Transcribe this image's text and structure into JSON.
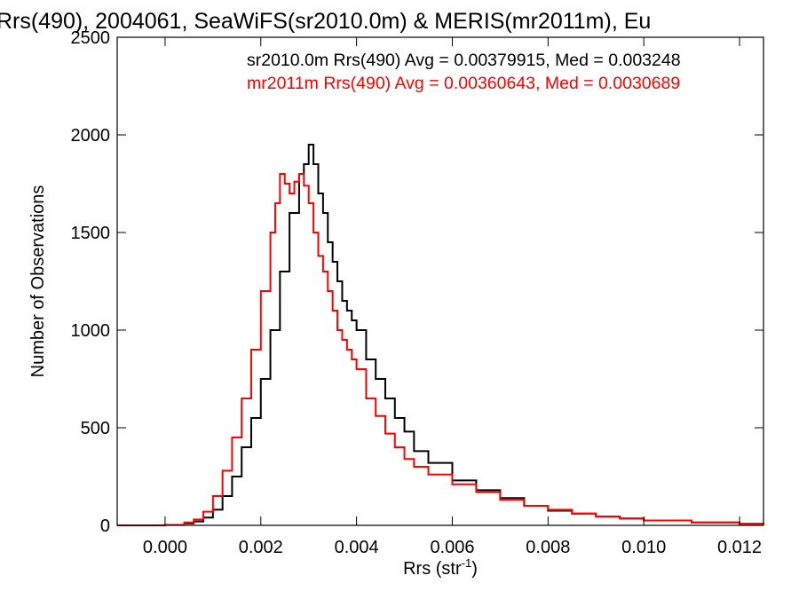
{
  "chart_data": {
    "type": "line",
    "title": "Rrs(490), 2004061, SeaWiFS(sr2010.0m) & MERIS(mr2011m), Eu",
    "xlabel": "Rrs (str",
    "xlabel_sup": "-1",
    "xlabel_close": ")",
    "ylabel": "Number of Observations",
    "xlim": [
      -0.001,
      0.0125
    ],
    "ylim": [
      0,
      2500
    ],
    "x_ticks": [
      0.0,
      0.002,
      0.004,
      0.006,
      0.008,
      0.01,
      0.012
    ],
    "x_tick_labels": [
      "0.000",
      "0.002",
      "0.004",
      "0.006",
      "0.008",
      "0.010",
      "0.012"
    ],
    "y_ticks": [
      0,
      500,
      1000,
      1500,
      2000,
      2500
    ],
    "y_tick_labels": [
      "0",
      "500",
      "1000",
      "1500",
      "2000",
      "2500"
    ],
    "grid": false,
    "legend_position": "top-right",
    "series": [
      {
        "name": "sr2010.0m Rrs(490) Avg = 0.00379915, Med = 0.003248",
        "color": "#000000",
        "points": [
          [
            -0.001,
            0
          ],
          [
            -0.0002,
            0
          ],
          [
            0.0,
            2
          ],
          [
            0.0004,
            10
          ],
          [
            0.0006,
            20
          ],
          [
            0.0008,
            40
          ],
          [
            0.001,
            80
          ],
          [
            0.0012,
            150
          ],
          [
            0.0014,
            250
          ],
          [
            0.0016,
            400
          ],
          [
            0.0018,
            550
          ],
          [
            0.002,
            750
          ],
          [
            0.0022,
            1000
          ],
          [
            0.0024,
            1300
          ],
          [
            0.0026,
            1600
          ],
          [
            0.0028,
            1800
          ],
          [
            0.0029,
            1850
          ],
          [
            0.003,
            1950
          ],
          [
            0.0031,
            1850
          ],
          [
            0.0032,
            1700
          ],
          [
            0.0033,
            1600
          ],
          [
            0.0034,
            1450
          ],
          [
            0.0035,
            1350
          ],
          [
            0.0036,
            1250
          ],
          [
            0.0037,
            1150
          ],
          [
            0.0038,
            1100
          ],
          [
            0.0039,
            1050
          ],
          [
            0.004,
            1000
          ],
          [
            0.0042,
            850
          ],
          [
            0.0044,
            750
          ],
          [
            0.0046,
            650
          ],
          [
            0.0048,
            550
          ],
          [
            0.005,
            480
          ],
          [
            0.0052,
            380
          ],
          [
            0.0055,
            320
          ],
          [
            0.006,
            230
          ],
          [
            0.0065,
            180
          ],
          [
            0.007,
            140
          ],
          [
            0.0075,
            100
          ],
          [
            0.008,
            75
          ],
          [
            0.0085,
            60
          ],
          [
            0.009,
            45
          ],
          [
            0.0095,
            35
          ],
          [
            0.01,
            25
          ],
          [
            0.011,
            15
          ],
          [
            0.012,
            8
          ],
          [
            0.0125,
            5
          ]
        ]
      },
      {
        "name": "mr2011m Rrs(490) Avg = 0.00360643, Med = 0.0030689",
        "color": "#ff0000",
        "points": [
          [
            -0.001,
            0
          ],
          [
            -0.0002,
            0
          ],
          [
            0.0,
            2
          ],
          [
            0.0004,
            15
          ],
          [
            0.0006,
            30
          ],
          [
            0.0008,
            70
          ],
          [
            0.001,
            150
          ],
          [
            0.0012,
            280
          ],
          [
            0.0014,
            450
          ],
          [
            0.0016,
            650
          ],
          [
            0.0018,
            900
          ],
          [
            0.002,
            1200
          ],
          [
            0.0022,
            1500
          ],
          [
            0.0023,
            1650
          ],
          [
            0.0024,
            1800
          ],
          [
            0.0025,
            1750
          ],
          [
            0.0026,
            1700
          ],
          [
            0.0027,
            1760
          ],
          [
            0.0028,
            1800
          ],
          [
            0.0029,
            1740
          ],
          [
            0.003,
            1650
          ],
          [
            0.0031,
            1500
          ],
          [
            0.0032,
            1380
          ],
          [
            0.0033,
            1300
          ],
          [
            0.0034,
            1200
          ],
          [
            0.0035,
            1100
          ],
          [
            0.0036,
            1000
          ],
          [
            0.0037,
            950
          ],
          [
            0.0038,
            900
          ],
          [
            0.0039,
            850
          ],
          [
            0.004,
            800
          ],
          [
            0.0042,
            650
          ],
          [
            0.0044,
            560
          ],
          [
            0.0046,
            470
          ],
          [
            0.0048,
            400
          ],
          [
            0.005,
            340
          ],
          [
            0.0052,
            300
          ],
          [
            0.0055,
            260
          ],
          [
            0.006,
            210
          ],
          [
            0.0065,
            170
          ],
          [
            0.007,
            130
          ],
          [
            0.0075,
            100
          ],
          [
            0.008,
            80
          ],
          [
            0.0085,
            60
          ],
          [
            0.009,
            45
          ],
          [
            0.0095,
            35
          ],
          [
            0.01,
            25
          ],
          [
            0.011,
            15
          ],
          [
            0.012,
            8
          ],
          [
            0.0125,
            5
          ]
        ]
      }
    ]
  }
}
